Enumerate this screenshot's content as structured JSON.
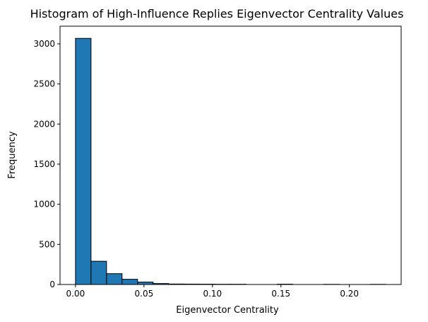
{
  "chart_data": {
    "type": "bar",
    "title": "Histogram of High-Influence Replies Eigenvector Centrality Values",
    "xlabel": "Eigenvector Centrality",
    "ylabel": "Frequency",
    "xlim": [
      -0.0113,
      0.2378
    ],
    "ylim": [
      0,
      3220
    ],
    "xticks": [
      0.0,
      0.05,
      0.1,
      0.15,
      0.2
    ],
    "xtick_labels": [
      "0.00",
      "0.05",
      "0.10",
      "0.15",
      "0.20"
    ],
    "yticks": [
      0,
      500,
      1000,
      1500,
      2000,
      2500,
      3000
    ],
    "ytick_labels": [
      "0",
      "500",
      "1000",
      "1500",
      "2000",
      "2500",
      "3000"
    ],
    "bin_edges": [
      0.0,
      0.01133,
      0.02266,
      0.03399,
      0.04532,
      0.05665,
      0.06798,
      0.07931,
      0.09064,
      0.10197,
      0.1133,
      0.12463,
      0.13596,
      0.14729,
      0.15862,
      0.16995,
      0.18128,
      0.19261,
      0.20394,
      0.21527,
      0.2266
    ],
    "values": [
      3068,
      290,
      135,
      65,
      30,
      12,
      6,
      5,
      4,
      3,
      3,
      0,
      0,
      4,
      0,
      0,
      2,
      0,
      0,
      2
    ],
    "bar_fill": "#1f77b4",
    "bar_edge": "#000000",
    "grid": false
  }
}
